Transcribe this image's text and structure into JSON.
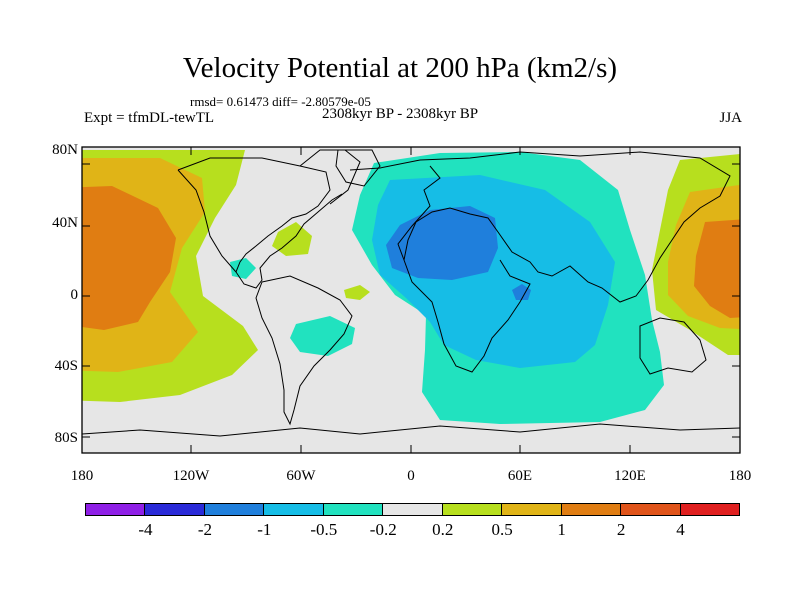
{
  "title": "Velocity Potential at 200 hPa (km2/s)",
  "stats_line": "rmsd= 0.61473 diff= -2.80579e-05",
  "left_label": "Expt = tfmDL-tewTL",
  "center_label": "2308kyr BP - 2308kyr BP",
  "right_label": "JJA",
  "lat_labels": [
    "80N",
    "40N",
    "0",
    "40S",
    "80S"
  ],
  "lon_labels": [
    "180",
    "120W",
    "60W",
    "0",
    "60E",
    "120E",
    "180"
  ],
  "colorbar": {
    "colors": [
      "#8f1fe6",
      "#2a2ad8",
      "#1f7fdc",
      "#16bde6",
      "#21e2bf",
      "#e6e6e6",
      "#b7df1e",
      "#e0b417",
      "#e07d12",
      "#e0541a",
      "#e02020"
    ],
    "labels": [
      "-4",
      "-2",
      "-1",
      "-0.5",
      "-0.2",
      "0.2",
      "0.5",
      "1",
      "2",
      "4"
    ]
  },
  "map": {
    "background_color": "#e6e6e6",
    "regions": [
      {
        "name": "pacific-west-0.5",
        "level": "0.5",
        "color": "#b7df1e"
      },
      {
        "name": "pacific-west-1",
        "level": "1",
        "color": "#e0b417"
      },
      {
        "name": "pacific-west-2",
        "level": "2",
        "color": "#e07d12"
      },
      {
        "name": "north-america-0.5",
        "level": "0.5",
        "color": "#b7df1e"
      },
      {
        "name": "caribbean-minus-0.2",
        "level": "-0.2",
        "color": "#21e2bf"
      },
      {
        "name": "atlantic-0.5",
        "level": "0.5",
        "color": "#b7df1e"
      },
      {
        "name": "south-america-minus-0.2",
        "level": "-0.2",
        "color": "#21e2bf"
      },
      {
        "name": "eurasia-africa-minus-0.2",
        "level": "-0.2",
        "color": "#21e2bf"
      },
      {
        "name": "africa-minus-0.5",
        "level": "-0.5",
        "color": "#16bde6"
      },
      {
        "name": "sahara-minus-1",
        "level": "-1",
        "color": "#1f7fdc"
      },
      {
        "name": "east-africa-minus-1",
        "level": "-1",
        "color": "#1f7fdc"
      },
      {
        "name": "pacific-east-0.5",
        "level": "0.5",
        "color": "#b7df1e"
      },
      {
        "name": "pacific-east-1",
        "level": "1",
        "color": "#e0b417"
      },
      {
        "name": "pacific-east-2",
        "level": "2",
        "color": "#e07d12"
      }
    ]
  }
}
